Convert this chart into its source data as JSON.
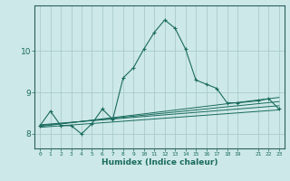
{
  "xlabel": "Humidex (Indice chaleur)",
  "bg_color": "#cde8e8",
  "grid_color": "#aacccc",
  "line_color": "#1a6b5e",
  "spine_color": "#2a6060",
  "xlim": [
    -0.5,
    23.5
  ],
  "ylim": [
    7.65,
    11.1
  ],
  "yticks": [
    8,
    9,
    10
  ],
  "xticks": [
    0,
    1,
    2,
    3,
    4,
    5,
    6,
    7,
    8,
    9,
    10,
    11,
    12,
    13,
    14,
    15,
    16,
    17,
    18,
    19,
    21,
    22,
    23
  ],
  "main_series": [
    [
      0,
      8.2
    ],
    [
      1,
      8.55
    ],
    [
      2,
      8.2
    ],
    [
      3,
      8.2
    ],
    [
      4,
      8.0
    ],
    [
      5,
      8.25
    ],
    [
      6,
      8.6
    ],
    [
      7,
      8.35
    ],
    [
      8,
      9.35
    ],
    [
      9,
      9.6
    ],
    [
      10,
      10.05
    ],
    [
      11,
      10.45
    ],
    [
      12,
      10.75
    ],
    [
      13,
      10.55
    ],
    [
      14,
      10.05
    ],
    [
      15,
      9.3
    ],
    [
      16,
      9.2
    ],
    [
      17,
      9.1
    ],
    [
      18,
      8.75
    ],
    [
      19,
      8.75
    ],
    [
      21,
      8.8
    ],
    [
      22,
      8.85
    ],
    [
      23,
      8.6
    ]
  ],
  "flat_series": [
    [
      [
        0,
        8.22
      ],
      [
        23,
        8.68
      ]
    ],
    [
      [
        0,
        8.2
      ],
      [
        23,
        8.78
      ]
    ],
    [
      [
        0,
        8.18
      ],
      [
        23,
        8.88
      ]
    ],
    [
      [
        0,
        8.16
      ],
      [
        23,
        8.58
      ]
    ]
  ]
}
